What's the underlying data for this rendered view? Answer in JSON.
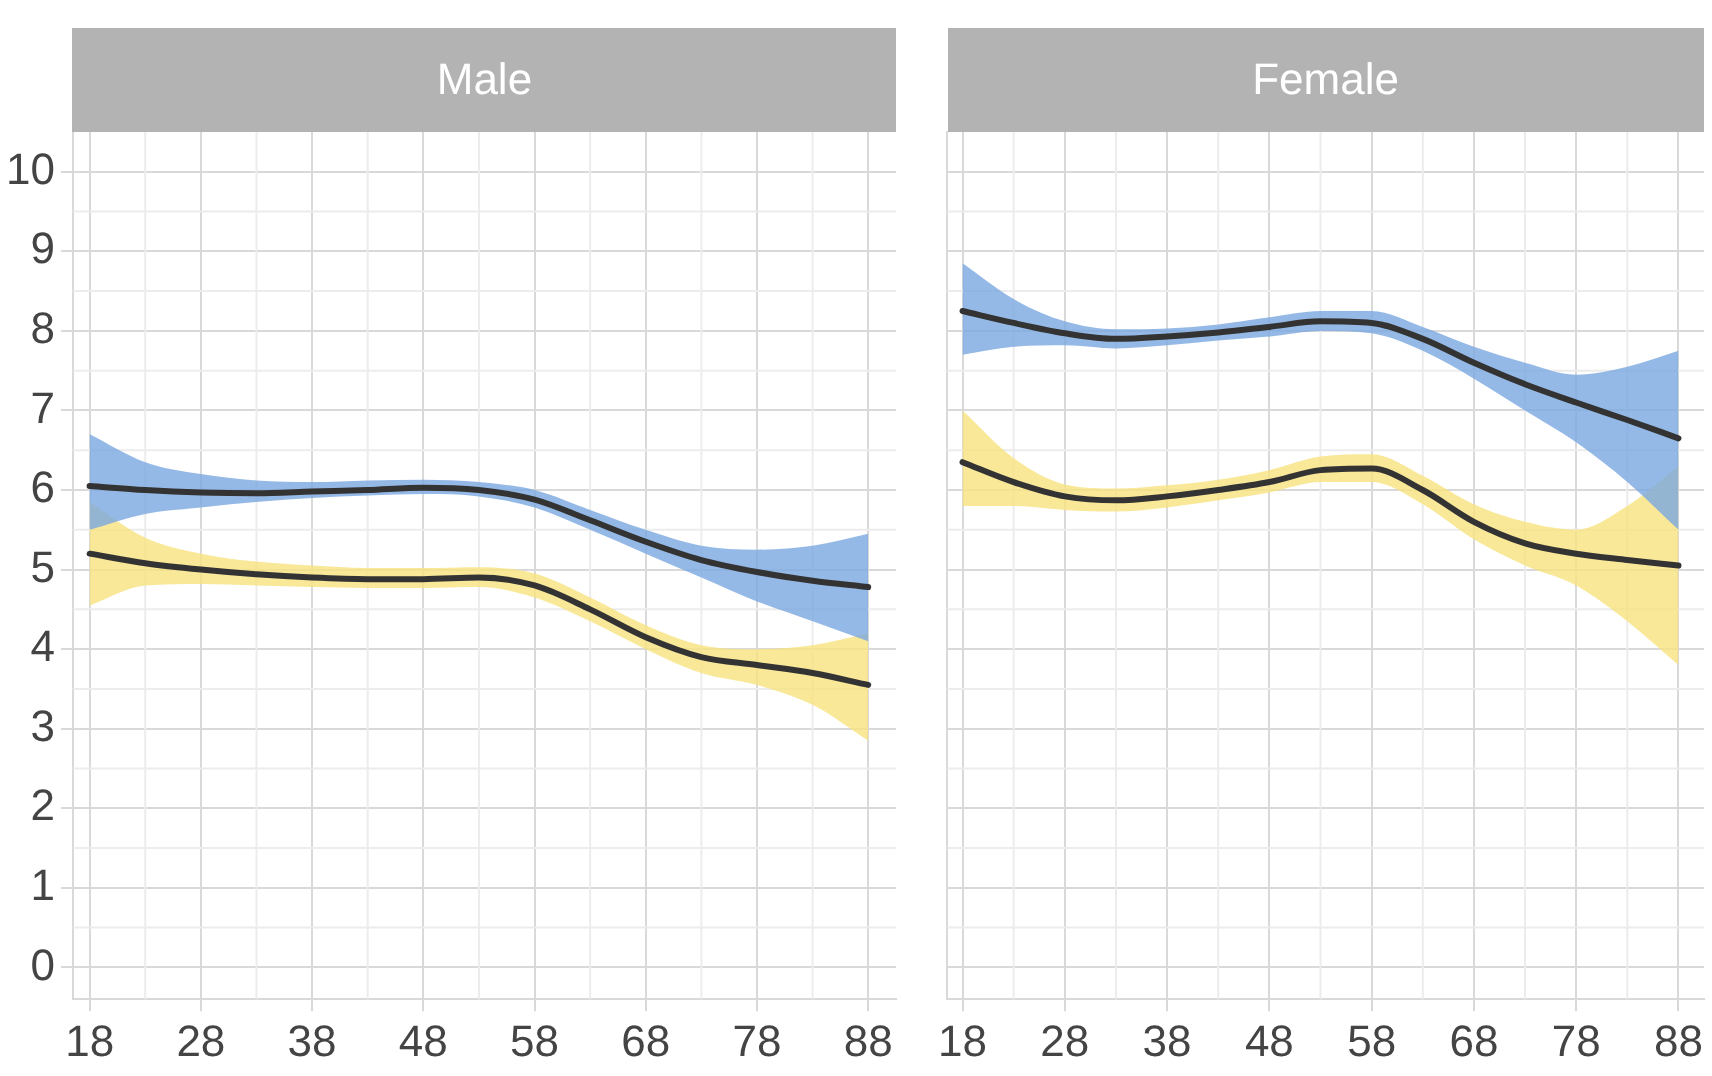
{
  "chart_data": [
    {
      "type": "line",
      "title": "Male",
      "x": [
        18,
        23,
        28,
        33,
        38,
        43,
        48,
        53,
        58,
        63,
        68,
        73,
        78,
        83,
        88
      ],
      "xlim": [
        16.5,
        90.5
      ],
      "ylim": [
        -0.4,
        10.5
      ],
      "xticks": [
        18,
        28,
        38,
        48,
        58,
        68,
        78,
        88
      ],
      "yticks": [
        0,
        1,
        2,
        3,
        4,
        5,
        6,
        7,
        8,
        9,
        10
      ],
      "grid": true,
      "marker": "none",
      "line_style": "solid",
      "series": [
        {
          "color": "#333333",
          "values": [
            6.05,
            6.0,
            5.97,
            5.96,
            5.98,
            6.0,
            6.03,
            6.0,
            5.88,
            5.62,
            5.35,
            5.12,
            4.97,
            4.86,
            4.78
          ],
          "lower": [
            5.5,
            5.7,
            5.78,
            5.85,
            5.9,
            5.93,
            5.95,
            5.92,
            5.78,
            5.5,
            5.2,
            4.9,
            4.6,
            4.35,
            4.1
          ],
          "upper": [
            6.7,
            6.35,
            6.2,
            6.12,
            6.1,
            6.12,
            6.13,
            6.1,
            6.0,
            5.75,
            5.5,
            5.3,
            5.25,
            5.3,
            5.45
          ]
        },
        {
          "color": "#333333",
          "values": [
            5.2,
            5.08,
            5.0,
            4.94,
            4.9,
            4.88,
            4.88,
            4.9,
            4.8,
            4.5,
            4.15,
            3.9,
            3.8,
            3.7,
            3.55
          ],
          "lower": [
            4.55,
            4.8,
            4.82,
            4.8,
            4.78,
            4.77,
            4.77,
            4.78,
            4.65,
            4.35,
            4.0,
            3.7,
            3.55,
            3.3,
            2.85
          ],
          "upper": [
            5.85,
            5.4,
            5.2,
            5.1,
            5.05,
            5.02,
            5.02,
            5.03,
            4.95,
            4.65,
            4.3,
            4.05,
            4.0,
            4.05,
            4.2
          ]
        }
      ]
    },
    {
      "type": "line",
      "title": "Female",
      "x": [
        18,
        23,
        28,
        33,
        38,
        43,
        48,
        53,
        58,
        63,
        68,
        73,
        78,
        83,
        88
      ],
      "xlim": [
        16.5,
        90.5
      ],
      "ylim": [
        -0.4,
        10.5
      ],
      "xticks": [
        18,
        28,
        38,
        48,
        58,
        68,
        78,
        88
      ],
      "yticks": [
        0,
        1,
        2,
        3,
        4,
        5,
        6,
        7,
        8,
        9,
        10
      ],
      "tick_labels": "x",
      "grid": true,
      "marker": "none",
      "line_style": "solid",
      "series": [
        {
          "color": "#333333",
          "values": [
            8.25,
            8.1,
            7.97,
            7.9,
            7.93,
            7.98,
            8.05,
            8.12,
            8.1,
            7.9,
            7.6,
            7.33,
            7.1,
            6.88,
            6.65
          ],
          "lower": [
            7.7,
            7.8,
            7.82,
            7.78,
            7.82,
            7.88,
            7.93,
            8.0,
            7.97,
            7.75,
            7.4,
            7.0,
            6.6,
            6.1,
            5.5
          ],
          "upper": [
            8.85,
            8.4,
            8.12,
            8.02,
            8.03,
            8.08,
            8.17,
            8.25,
            8.25,
            8.05,
            7.8,
            7.6,
            7.45,
            7.55,
            7.75
          ]
        },
        {
          "color": "#333333",
          "values": [
            6.35,
            6.1,
            5.92,
            5.87,
            5.92,
            6.0,
            6.1,
            6.25,
            6.27,
            6.0,
            5.6,
            5.33,
            5.2,
            5.12,
            5.05
          ],
          "lower": [
            5.8,
            5.8,
            5.75,
            5.73,
            5.78,
            5.87,
            5.97,
            6.1,
            6.1,
            5.82,
            5.38,
            5.05,
            4.8,
            4.35,
            3.8
          ],
          "upper": [
            7.0,
            6.4,
            6.07,
            6.02,
            6.06,
            6.13,
            6.25,
            6.42,
            6.45,
            6.18,
            5.82,
            5.6,
            5.5,
            5.8,
            6.3
          ]
        }
      ]
    }
  ]
}
